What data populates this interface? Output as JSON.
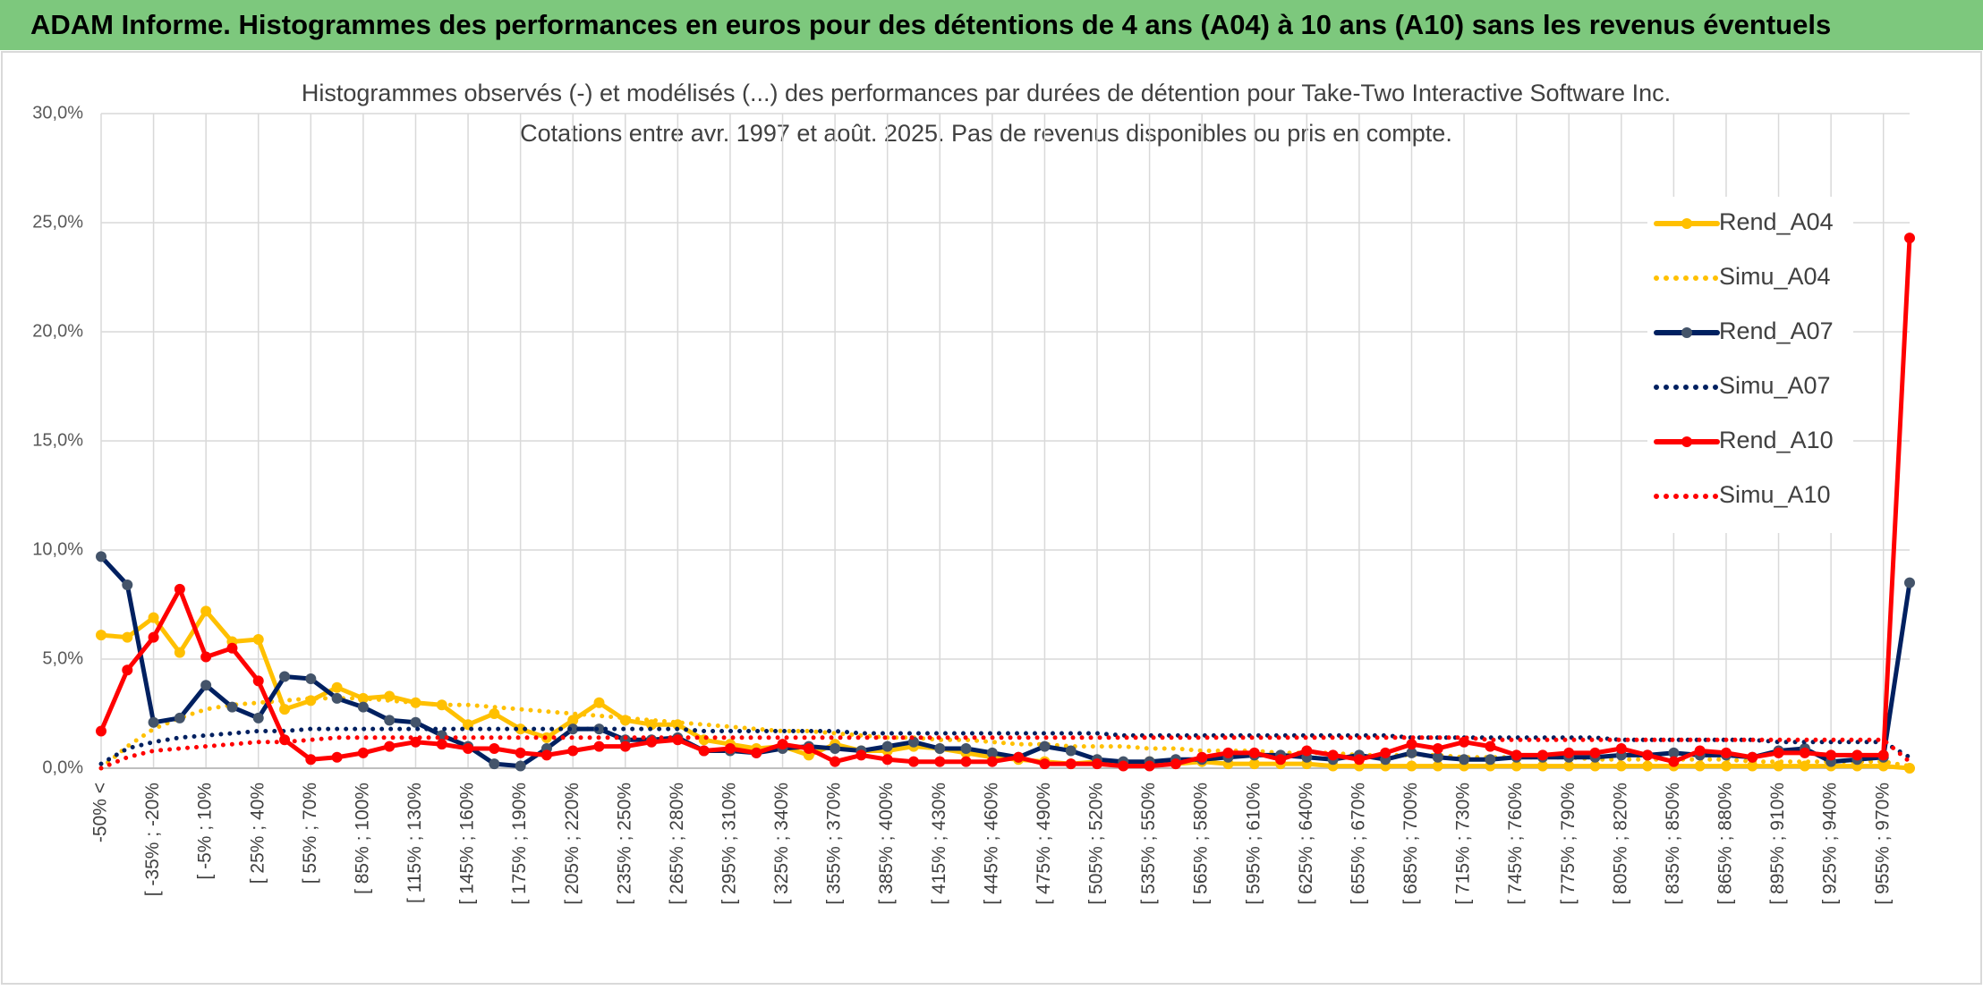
{
  "header": {
    "title": "ADAM Informe. Histogrammes des performances en euros pour des détentions de 4 ans (A04) à 10 ans (A10) sans les revenus éventuels"
  },
  "chart_data": {
    "type": "line",
    "title": "Histogrammes observés (-) et modélisés (...) des performances par durées de détention pour Take-Two Interactive Software Inc.",
    "subtitle": "Cotations entre avr. 1997 et août. 2025. Pas de revenus disponibles ou pris en compte.",
    "categories": [
      "-50% <",
      null,
      "[ -35% ; -20%",
      null,
      "[ -5% ; 10%",
      null,
      "[ 25% ; 40%",
      null,
      "[ 55% ; 70%",
      null,
      "[ 85% ; 100%",
      null,
      "[ 115% ; 130%",
      null,
      "[ 145% ; 160%",
      null,
      "[ 175% ; 190%",
      null,
      "[ 205% ; 220%",
      null,
      "[ 235% ; 250%",
      null,
      "[ 265% ; 280%",
      null,
      "[ 295% ; 310%",
      null,
      "[ 325% ; 340%",
      null,
      "[ 355% ; 370%",
      null,
      "[ 385% ; 400%",
      null,
      "[ 415% ; 430%",
      null,
      "[ 445% ; 460%",
      null,
      "[ 475% ; 490%",
      null,
      "[ 505% ; 520%",
      null,
      "[ 535% ; 550%",
      null,
      "[ 565% ; 580%",
      null,
      "[ 595% ; 610%",
      null,
      "[ 625% ; 640%",
      null,
      "[ 655% ; 670%",
      null,
      "[ 685% ; 700%",
      null,
      "[ 715% ; 730%",
      null,
      "[ 745% ; 760%",
      null,
      "[ 775% ; 790%",
      null,
      "[ 805% ; 820%",
      null,
      "[ 835% ; 850%",
      null,
      "[ 865% ; 880%",
      null,
      "[ 895% ; 910%",
      null,
      "[ 925% ; 940%",
      null,
      "[ 955% ; 970%",
      null
    ],
    "series": [
      {
        "name": "Rend_A04",
        "color": "#FFC000",
        "style": "solid",
        "markers": true,
        "values": [
          6.1,
          6.0,
          6.9,
          5.3,
          7.2,
          5.8,
          5.9,
          2.7,
          3.1,
          3.7,
          3.2,
          3.3,
          3.0,
          2.9,
          2.0,
          2.5,
          1.8,
          1.4,
          2.2,
          3.0,
          2.2,
          2.0,
          2.0,
          1.3,
          1.1,
          0.9,
          1.0,
          0.6,
          1.1,
          0.8,
          0.8,
          1.0,
          0.9,
          0.7,
          0.5,
          0.4,
          0.3,
          0.2,
          0.3,
          0.2,
          0.3,
          0.2,
          0.3,
          0.2,
          0.2,
          0.2,
          0.2,
          0.1,
          0.1,
          0.1,
          0.1,
          0.1,
          0.1,
          0.1,
          0.1,
          0.1,
          0.1,
          0.1,
          0.1,
          0.1,
          0.1,
          0.1,
          0.1,
          0.1,
          0.1,
          0.1,
          0.1,
          0.1,
          0.1,
          0.0
        ]
      },
      {
        "name": "Simu_A04",
        "color": "#FFC000",
        "style": "dotted",
        "markers": false,
        "values": [
          0.0,
          1.0,
          1.8,
          2.3,
          2.7,
          2.9,
          3.0,
          3.1,
          3.2,
          3.2,
          3.2,
          3.1,
          3.0,
          2.9,
          2.9,
          2.8,
          2.7,
          2.6,
          2.5,
          2.4,
          2.3,
          2.2,
          2.1,
          2.0,
          1.9,
          1.8,
          1.7,
          1.7,
          1.6,
          1.5,
          1.4,
          1.4,
          1.3,
          1.3,
          1.2,
          1.1,
          1.1,
          1.0,
          1.0,
          1.0,
          0.9,
          0.9,
          0.8,
          0.8,
          0.8,
          0.7,
          0.7,
          0.7,
          0.6,
          0.6,
          0.6,
          0.6,
          0.5,
          0.5,
          0.5,
          0.5,
          0.5,
          0.4,
          0.4,
          0.4,
          0.4,
          0.4,
          0.4,
          0.3,
          0.3,
          0.3,
          0.3,
          0.3,
          0.3,
          0.1
        ]
      },
      {
        "name": "Rend_A07",
        "color": "#002060",
        "marker_color": "#44546A",
        "style": "solid",
        "markers": true,
        "values": [
          9.7,
          8.4,
          2.1,
          2.3,
          3.8,
          2.8,
          2.3,
          4.2,
          4.1,
          3.2,
          2.8,
          2.2,
          2.1,
          1.5,
          1.0,
          0.2,
          0.1,
          0.9,
          1.8,
          1.8,
          1.3,
          1.3,
          1.4,
          0.8,
          0.8,
          0.7,
          0.9,
          1.0,
          0.9,
          0.8,
          1.0,
          1.2,
          0.9,
          0.9,
          0.7,
          0.5,
          1.0,
          0.8,
          0.4,
          0.3,
          0.3,
          0.4,
          0.4,
          0.5,
          0.6,
          0.6,
          0.5,
          0.4,
          0.6,
          0.4,
          0.7,
          0.5,
          0.4,
          0.4,
          0.5,
          0.5,
          0.5,
          0.5,
          0.6,
          0.6,
          0.7,
          0.6,
          0.6,
          0.5,
          0.8,
          0.9,
          0.3,
          0.4,
          0.5,
          8.5
        ]
      },
      {
        "name": "Simu_A07",
        "color": "#002060",
        "style": "dotted",
        "markers": false,
        "values": [
          0.2,
          0.9,
          1.2,
          1.4,
          1.5,
          1.6,
          1.7,
          1.7,
          1.8,
          1.8,
          1.8,
          1.8,
          1.8,
          1.8,
          1.8,
          1.8,
          1.8,
          1.8,
          1.8,
          1.8,
          1.8,
          1.8,
          1.8,
          1.7,
          1.7,
          1.7,
          1.7,
          1.7,
          1.7,
          1.6,
          1.6,
          1.6,
          1.6,
          1.6,
          1.6,
          1.6,
          1.6,
          1.6,
          1.6,
          1.5,
          1.5,
          1.5,
          1.5,
          1.5,
          1.5,
          1.5,
          1.5,
          1.5,
          1.5,
          1.5,
          1.4,
          1.4,
          1.4,
          1.4,
          1.4,
          1.4,
          1.4,
          1.4,
          1.3,
          1.3,
          1.3,
          1.3,
          1.3,
          1.3,
          1.2,
          1.2,
          1.2,
          1.2,
          1.2,
          0.5
        ]
      },
      {
        "name": "Rend_A10",
        "color": "#FF0000",
        "style": "solid",
        "markers": true,
        "values": [
          1.7,
          4.5,
          6.0,
          8.2,
          5.1,
          5.5,
          4.0,
          1.3,
          0.4,
          0.5,
          0.7,
          1.0,
          1.2,
          1.1,
          0.9,
          0.9,
          0.7,
          0.6,
          0.8,
          1.0,
          1.0,
          1.2,
          1.3,
          0.8,
          0.9,
          0.7,
          1.1,
          0.9,
          0.3,
          0.6,
          0.4,
          0.3,
          0.3,
          0.3,
          0.3,
          0.5,
          0.2,
          0.2,
          0.2,
          0.1,
          0.1,
          0.2,
          0.5,
          0.7,
          0.7,
          0.4,
          0.8,
          0.6,
          0.4,
          0.7,
          1.1,
          0.9,
          1.2,
          1.0,
          0.6,
          0.6,
          0.7,
          0.7,
          0.9,
          0.6,
          0.3,
          0.8,
          0.7,
          0.5,
          0.7,
          0.7,
          0.6,
          0.6,
          0.6,
          24.3
        ]
      },
      {
        "name": "Simu_A10",
        "color": "#FF0000",
        "style": "dotted",
        "markers": false,
        "values": [
          0.0,
          0.5,
          0.8,
          0.9,
          1.0,
          1.1,
          1.2,
          1.2,
          1.3,
          1.4,
          1.4,
          1.4,
          1.4,
          1.4,
          1.4,
          1.4,
          1.4,
          1.4,
          1.4,
          1.4,
          1.4,
          1.4,
          1.4,
          1.4,
          1.4,
          1.4,
          1.4,
          1.4,
          1.4,
          1.4,
          1.4,
          1.4,
          1.4,
          1.4,
          1.4,
          1.4,
          1.4,
          1.4,
          1.4,
          1.4,
          1.4,
          1.4,
          1.4,
          1.4,
          1.4,
          1.4,
          1.4,
          1.4,
          1.4,
          1.4,
          1.4,
          1.4,
          1.4,
          1.3,
          1.3,
          1.3,
          1.3,
          1.3,
          1.3,
          1.3,
          1.3,
          1.3,
          1.3,
          1.3,
          1.3,
          1.3,
          1.3,
          1.3,
          1.3,
          0.3
        ]
      }
    ],
    "ylim": [
      0,
      30
    ],
    "yticks": [
      {
        "value": 0,
        "label": "0,0%"
      },
      {
        "value": 5,
        "label": "5,0%"
      },
      {
        "value": 10,
        "label": "10,0%"
      },
      {
        "value": 15,
        "label": "15,0%"
      },
      {
        "value": 20,
        "label": "20,0%"
      },
      {
        "value": 25,
        "label": "25,0%"
      },
      {
        "value": 30,
        "label": "30,0%"
      }
    ],
    "grid": true,
    "legend": "right"
  }
}
